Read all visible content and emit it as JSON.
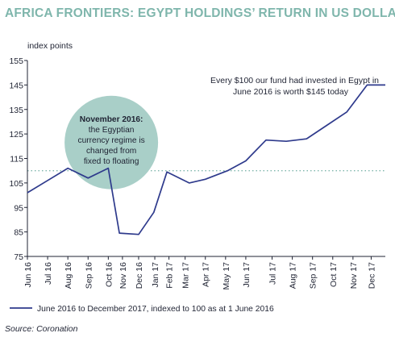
{
  "title": "AFRICA FRONTIERS: EGYPT HOLDINGS’ RETURN IN US DOLLARS",
  "source": "Source: Coronation",
  "colors": {
    "title": "#7fb6ac",
    "line": "#2e3a8c",
    "callout": "#a9cfc8",
    "baseline": "#7fb6ac",
    "text": "#1f2333"
  },
  "chart_data": {
    "type": "line",
    "ylabel": "index points",
    "ylim": [
      75,
      155
    ],
    "yticks": [
      75,
      85,
      95,
      105,
      115,
      125,
      135,
      145,
      155
    ],
    "categories": [
      "Jun 16",
      "Jul 16",
      "Aug 16",
      "Sep 16",
      "Oct 16",
      "Nov 16",
      "Dec 16",
      "Jan 17",
      "Feb 17",
      "Mar 17",
      "Apr 17",
      "May 17",
      "Jun 17",
      "Jul 17",
      "Aug 17",
      "Sep 17",
      "Oct 17",
      "Nov 17",
      "Dec 17"
    ],
    "x": [
      0,
      1,
      2,
      3,
      4,
      4.7,
      5.5,
      6.3,
      7,
      7.8,
      8.8,
      9.8,
      10.8,
      12.1,
      13.1,
      14.1,
      15.1,
      16.1,
      17
    ],
    "series": [
      {
        "name": "June 2016 to December 2017, indexed to 100 as at 1 June 2016",
        "x": [
          0.0,
          1.0,
          2.0,
          3.0,
          4.0,
          4.55,
          5.5,
          6.25,
          6.9,
          8.0,
          8.8,
          9.9,
          10.8,
          11.8,
          12.8,
          13.8,
          14.8,
          15.8,
          16.8,
          17.7
        ],
        "values": [
          101,
          106,
          111,
          107,
          111,
          84.5,
          84,
          93,
          109.5,
          105,
          106.5,
          110,
          114,
          122.5,
          122,
          123,
          128.5,
          134,
          145,
          145
        ]
      }
    ],
    "reference_line": 110,
    "annotations": {
      "callout": [
        "November 2016:",
        "the Egyptian",
        "currency regime is",
        "changed from",
        "fixed to floating"
      ],
      "end_note": [
        "Every $100 our fund had invested in Egypt in",
        "June 2016 is worth $145 today"
      ]
    },
    "legend": {
      "label": "June 2016 to December 2017, indexed to 100 as at 1 June 2016",
      "placement": "bottom"
    },
    "grid": false
  }
}
